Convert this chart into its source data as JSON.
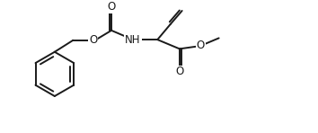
{
  "bg_color": "#ffffff",
  "line_color": "#1a1a1a",
  "line_width": 1.4,
  "font_size": 8.5,
  "figsize": [
    3.54,
    1.48
  ],
  "dpi": 100,
  "xlim": [
    0,
    10
  ],
  "ylim": [
    0,
    4.18
  ]
}
